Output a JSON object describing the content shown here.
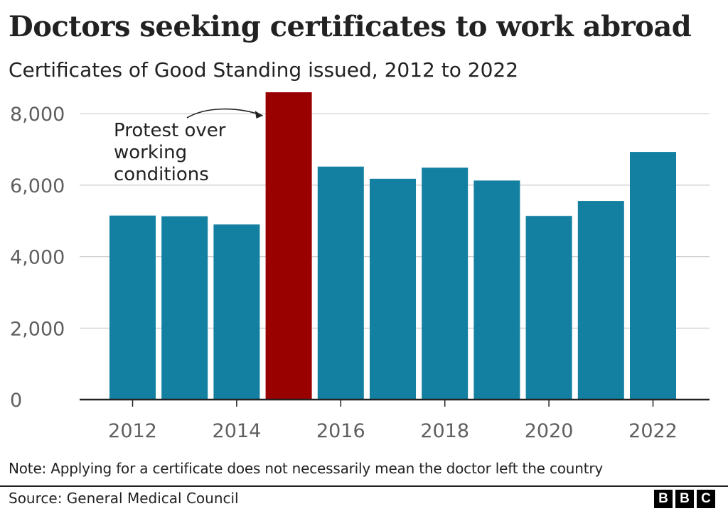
{
  "title": "Doctors seeking certificates to work abroad",
  "subtitle": "Certificates of Good Standing issued, 2012 to 2022",
  "note": "Note: Applying for a certificate does not necessarily mean the doctor left the country",
  "source": "Source: General Medical Council",
  "logo": {
    "letters": [
      "B",
      "B",
      "C"
    ]
  },
  "colors": {
    "bar": "#1380a1",
    "highlight": "#990000",
    "grid": "#cccccc",
    "axis": "#222222",
    "tick_label": "#5f5f5f"
  },
  "chart_data": {
    "type": "bar",
    "title": "Doctors seeking certificates to work abroad",
    "subtitle": "Certificates of Good Standing issued, 2012 to 2022",
    "categories": [
      2012,
      2013,
      2014,
      2015,
      2016,
      2017,
      2018,
      2019,
      2020,
      2021,
      2022
    ],
    "values": [
      5150,
      5130,
      4900,
      8600,
      6520,
      6180,
      6490,
      6130,
      5140,
      5560,
      6930
    ],
    "highlight_category": 2015,
    "ylim": [
      0,
      8600
    ],
    "yticks": [
      0,
      2000,
      4000,
      6000,
      8000
    ],
    "ytick_labels": [
      "0",
      "2,000",
      "4,000",
      "6,000",
      "8,000"
    ],
    "xtick_labels": [
      "2012",
      "2014",
      "2016",
      "2018",
      "2020",
      "2022"
    ],
    "grid": true,
    "annotation": {
      "category": 2015,
      "lines": [
        "Protest over",
        "working",
        "conditions"
      ]
    }
  }
}
